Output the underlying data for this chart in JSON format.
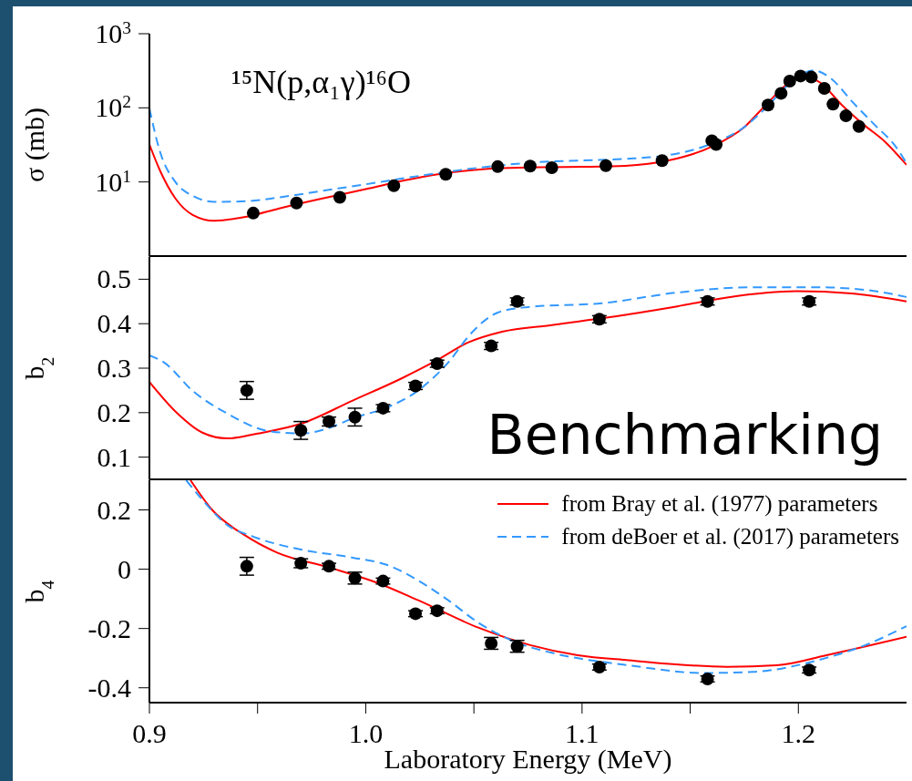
{
  "chart_data": [
    {
      "type": "line",
      "ylabel": "σ (mb)",
      "log": true,
      "tick_labels": "y",
      "xlim": [
        0.9,
        1.25
      ],
      "xticks": [
        0.9,
        0.95,
        1,
        1.05,
        1.1,
        1.15,
        1.2
      ],
      "ylim": [
        1,
        1000
      ],
      "yticks": [
        {
          "value": 10,
          "label": "10$^{1}$"
        },
        {
          "value": 100,
          "label": "10$^{2}$"
        },
        {
          "value": 1000,
          "label": "10$^{3}$"
        }
      ],
      "annotations": [
        "¹⁵N(p,α₁γ)¹⁶O"
      ],
      "series": [
        {
          "color": "#ff0000",
          "x": [
            0.9,
            0.905,
            0.912,
            0.92,
            0.93,
            0.945,
            0.96,
            0.98,
            1.0,
            1.02,
            1.04,
            1.06,
            1.08,
            1.1,
            1.12,
            1.14,
            1.16,
            1.175,
            1.185,
            1.195,
            1.202,
            1.21,
            1.22,
            1.23,
            1.24,
            1.25
          ],
          "values": [
            32,
            14,
            6,
            3.6,
            3.0,
            3.4,
            4.4,
            6.0,
            8.0,
            10.8,
            13.5,
            15.3,
            15.8,
            16.0,
            16.5,
            19.5,
            30,
            55,
            110,
            210,
            270,
            220,
            110,
            60,
            35,
            17
          ]
        },
        {
          "color": "#3399ff",
          "line_style": "dashed",
          "x": [
            0.9,
            0.905,
            0.912,
            0.92,
            0.93,
            0.945,
            0.96,
            0.98,
            1.0,
            1.02,
            1.04,
            1.06,
            1.08,
            1.1,
            1.12,
            1.14,
            1.16,
            1.175,
            1.185,
            1.195,
            1.207,
            1.215,
            1.225,
            1.235,
            1.245,
            1.25
          ],
          "values": [
            98,
            25,
            10,
            6.5,
            5.4,
            5.5,
            6.2,
            7.6,
            9.3,
            11.5,
            14,
            16.5,
            18.5,
            19.5,
            20.5,
            23,
            33,
            55,
            100,
            200,
            320,
            250,
            120,
            60,
            30,
            18
          ]
        },
        {
          "type": "scatter",
          "color": "#000000",
          "marker": "circle",
          "x": [
            0.948,
            0.968,
            0.988,
            1.013,
            1.037,
            1.061,
            1.076,
            1.086,
            1.111,
            1.137,
            1.16,
            1.162,
            1.186,
            1.192,
            1.196,
            1.201,
            1.206,
            1.212,
            1.216,
            1.222,
            1.228
          ],
          "values": [
            3.8,
            5.2,
            6.2,
            8.9,
            12.7,
            16.1,
            16.4,
            15.6,
            16.6,
            19.4,
            36,
            32,
            109,
            157,
            229,
            269,
            260,
            183,
            112,
            78,
            56
          ]
        }
      ]
    },
    {
      "type": "line",
      "ylabel": "b$_{2}$",
      "tick_labels": "y",
      "xlim": [
        0.9,
        1.25
      ],
      "xticks": [
        0.9,
        0.95,
        1,
        1.05,
        1.1,
        1.15,
        1.2
      ],
      "ylim": [
        0.05,
        0.55
      ],
      "yticks": [
        0.1,
        0.2,
        0.3,
        0.4,
        0.5
      ],
      "annotations": [
        "Benchmarking"
      ],
      "series": [
        {
          "color": "#ff0000",
          "x": [
            0.9,
            0.913,
            0.9245,
            0.936,
            0.95,
            0.9706,
            0.9939,
            1.017,
            1.033,
            1.047,
            1.063,
            1.086,
            1.109,
            1.144,
            1.167,
            1.199,
            1.2246,
            1.25
          ],
          "values": [
            0.269,
            0.198,
            0.155,
            0.142,
            0.153,
            0.176,
            0.227,
            0.278,
            0.318,
            0.357,
            0.382,
            0.397,
            0.412,
            0.439,
            0.459,
            0.473,
            0.468,
            0.45
          ]
        },
        {
          "color": "#3399ff",
          "line_style": "dashed",
          "x": [
            0.9,
            0.907,
            0.92,
            0.936,
            0.9546,
            0.9706,
            0.982,
            0.995,
            1.009,
            1.024,
            1.038,
            1.049,
            1.061,
            1.074,
            1.109,
            1.144,
            1.178,
            1.208,
            1.231,
            1.25
          ],
          "values": [
            0.329,
            0.312,
            0.249,
            0.198,
            0.159,
            0.153,
            0.164,
            0.189,
            0.21,
            0.249,
            0.312,
            0.38,
            0.425,
            0.437,
            0.446,
            0.47,
            0.482,
            0.482,
            0.476,
            0.46
          ]
        },
        {
          "type": "scatter",
          "color": "#000000",
          "marker": "circle",
          "x": [
            0.945,
            0.97,
            0.983,
            0.995,
            1.008,
            1.023,
            1.033,
            1.058,
            1.07,
            1.108,
            1.158,
            1.205
          ],
          "values": [
            0.25,
            0.16,
            0.18,
            0.19,
            0.21,
            0.26,
            0.31,
            0.35,
            0.45,
            0.41,
            0.45,
            0.45
          ],
          "errors": [
            0.02,
            0.02,
            0.01,
            0.02,
            0.008,
            0.008,
            0.008,
            0.008,
            0.008,
            0.008,
            0.008,
            0.008
          ]
        }
      ]
    },
    {
      "type": "line",
      "ylabel": "b$_{4}$",
      "xlabel": "Laboratory Energy (MeV)",
      "legend": "top right",
      "xlim": [
        0.9,
        1.25
      ],
      "xticks": [
        0.9,
        {
          "value": 0.95,
          "label": null
        },
        {
          "value": 1,
          "label": "1.0"
        },
        {
          "value": 1.05,
          "label": null
        },
        1.1,
        {
          "value": 1.15,
          "label": null
        },
        1.2
      ],
      "ylim": [
        -0.45,
        0.3
      ],
      "yticks": [
        -0.4,
        -0.2,
        0,
        0.2
      ],
      "series": [
        {
          "name": "from Bray et al. (1977) parameters",
          "color": "#ff0000",
          "x": [
            0.919,
            0.929,
            0.944,
            0.959,
            0.983,
            1.005,
            1.024,
            1.052,
            1.076,
            1.098,
            1.1215,
            1.167,
            1.19,
            1.213,
            1.25
          ],
          "values": [
            0.3,
            0.2,
            0.115,
            0.056,
            0.006,
            -0.045,
            -0.104,
            -0.197,
            -0.256,
            -0.29,
            -0.307,
            -0.329,
            -0.324,
            -0.29,
            -0.228
          ]
        },
        {
          "name": "from deBoer et al. (2017) parameters",
          "color": "#3399ff",
          "line_style": "dashed",
          "x": [
            0.917,
            0.9245,
            0.936,
            0.948,
            0.971,
            0.994,
            1.01,
            1.024,
            1.038,
            1.052,
            1.07,
            1.086,
            1.1215,
            1.156,
            1.179,
            1.213,
            1.231,
            1.25
          ],
          "values": [
            0.3,
            0.234,
            0.149,
            0.11,
            0.065,
            0.039,
            0.014,
            -0.037,
            -0.104,
            -0.18,
            -0.248,
            -0.282,
            -0.324,
            -0.35,
            -0.346,
            -0.299,
            -0.256,
            -0.192
          ]
        },
        {
          "type": "scatter",
          "color": "#000000",
          "marker": "circle",
          "x": [
            0.945,
            0.97,
            0.983,
            0.995,
            1.008,
            1.023,
            1.033,
            1.058,
            1.07,
            1.108,
            1.158,
            1.205
          ],
          "values": [
            0.01,
            0.02,
            0.01,
            -0.03,
            -0.04,
            -0.15,
            -0.14,
            -0.25,
            -0.26,
            -0.33,
            -0.37,
            -0.34
          ],
          "errors": [
            0.03,
            0.015,
            0.01,
            0.02,
            0.01,
            0.01,
            0.01,
            0.02,
            0.02,
            0.01,
            0.01,
            0.01
          ]
        }
      ]
    }
  ]
}
